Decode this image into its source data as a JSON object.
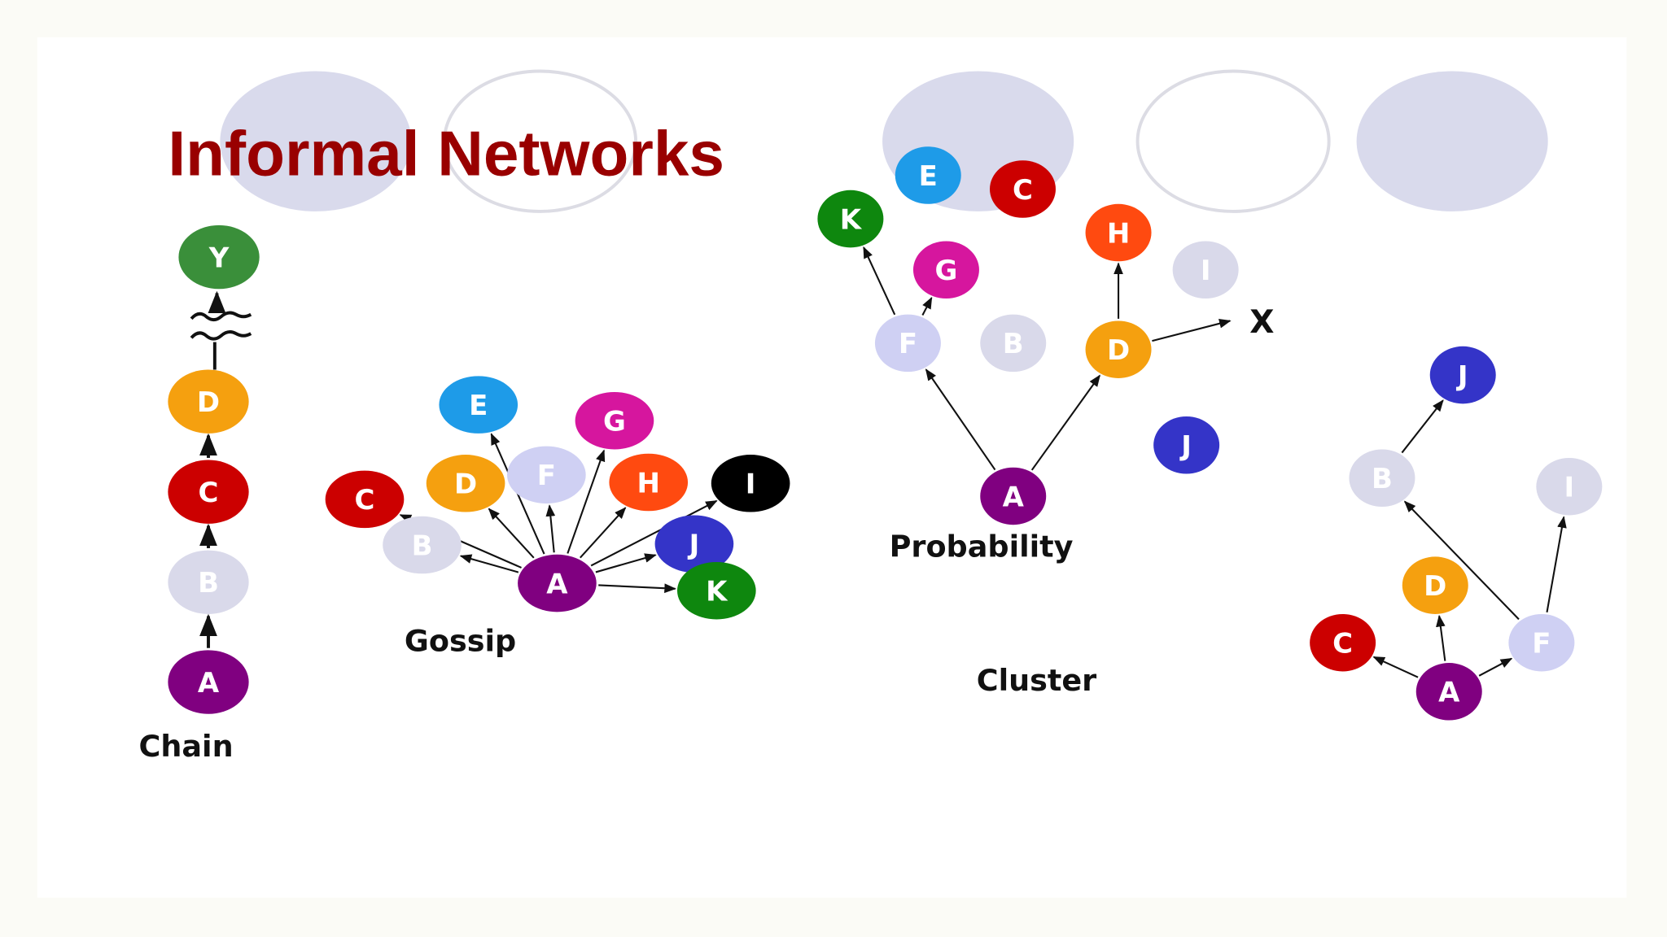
{
  "title": "Informal Networks",
  "colors": {
    "title": "#990000",
    "decor_fill": "#d9daec",
    "decor_stroke": "#dcdce4",
    "purple": "#800080",
    "light": "#d9d9ea",
    "lavender": "#cfd0f3",
    "orange": "#f5a00f",
    "red": "#cc0000",
    "green": "#3a8f3a",
    "dark_green": "#0e870e",
    "blue": "#1e9be8",
    "magenta": "#d6169e",
    "orange_red": "#ff4a10",
    "black": "#000000",
    "indigo": "#3434c8"
  },
  "networks": [
    {
      "id": "chain",
      "caption": "Chain",
      "nodes": [
        {
          "id": "chain-Y",
          "label": "Y",
          "color": "green"
        },
        {
          "id": "chain-D",
          "label": "D",
          "color": "orange"
        },
        {
          "id": "chain-C",
          "label": "C",
          "color": "red"
        },
        {
          "id": "chain-B",
          "label": "B",
          "color": "light"
        },
        {
          "id": "chain-A",
          "label": "A",
          "color": "purple"
        }
      ],
      "edges": [
        [
          "chain-A",
          "chain-B"
        ],
        [
          "chain-B",
          "chain-C"
        ],
        [
          "chain-C",
          "chain-D"
        ]
      ],
      "break_edge": [
        "chain-D",
        "chain-Y"
      ]
    },
    {
      "id": "gossip",
      "caption": "Gossip",
      "nodes": [
        {
          "id": "g-C",
          "label": "C",
          "color": "red"
        },
        {
          "id": "g-B",
          "label": "B",
          "color": "light"
        },
        {
          "id": "g-D",
          "label": "D",
          "color": "orange"
        },
        {
          "id": "g-E",
          "label": "E",
          "color": "blue"
        },
        {
          "id": "g-F",
          "label": "F",
          "color": "lavender"
        },
        {
          "id": "g-G",
          "label": "G",
          "color": "magenta"
        },
        {
          "id": "g-H",
          "label": "H",
          "color": "orange_red"
        },
        {
          "id": "g-I",
          "label": "I",
          "color": "black"
        },
        {
          "id": "g-J",
          "label": "J",
          "color": "indigo"
        },
        {
          "id": "g-K",
          "label": "K",
          "color": "dark_green"
        },
        {
          "id": "g-A",
          "label": "A",
          "color": "purple"
        }
      ],
      "edges": [
        [
          "g-A",
          "g-C"
        ],
        [
          "g-A",
          "g-B"
        ],
        [
          "g-A",
          "g-D"
        ],
        [
          "g-A",
          "g-E"
        ],
        [
          "g-A",
          "g-F"
        ],
        [
          "g-A",
          "g-G"
        ],
        [
          "g-A",
          "g-H"
        ],
        [
          "g-A",
          "g-I"
        ],
        [
          "g-A",
          "g-J"
        ],
        [
          "g-A",
          "g-K"
        ]
      ]
    },
    {
      "id": "probability",
      "caption": "Probability",
      "external_label": "X",
      "nodes": [
        {
          "id": "p-E",
          "label": "E",
          "color": "blue"
        },
        {
          "id": "p-C",
          "label": "C",
          "color": "red"
        },
        {
          "id": "p-K",
          "label": "K",
          "color": "dark_green"
        },
        {
          "id": "p-G",
          "label": "G",
          "color": "magenta"
        },
        {
          "id": "p-H",
          "label": "H",
          "color": "orange_red"
        },
        {
          "id": "p-I",
          "label": "I",
          "color": "light"
        },
        {
          "id": "p-F",
          "label": "F",
          "color": "lavender"
        },
        {
          "id": "p-B",
          "label": "B",
          "color": "light"
        },
        {
          "id": "p-D",
          "label": "D",
          "color": "orange"
        },
        {
          "id": "p-J",
          "label": "J",
          "color": "indigo"
        },
        {
          "id": "p-A",
          "label": "A",
          "color": "purple"
        }
      ],
      "edges": [
        [
          "p-A",
          "p-F"
        ],
        [
          "p-A",
          "p-D"
        ],
        [
          "p-F",
          "p-K"
        ],
        [
          "p-F",
          "p-G"
        ],
        [
          "p-D",
          "p-H"
        ],
        [
          "p-D",
          "p-X"
        ]
      ]
    },
    {
      "id": "cluster",
      "caption": "Cluster",
      "nodes": [
        {
          "id": "c-J",
          "label": "J",
          "color": "indigo"
        },
        {
          "id": "c-B",
          "label": "B",
          "color": "light"
        },
        {
          "id": "c-I",
          "label": "I",
          "color": "light"
        },
        {
          "id": "c-D",
          "label": "D",
          "color": "orange"
        },
        {
          "id": "c-C",
          "label": "C",
          "color": "red"
        },
        {
          "id": "c-F",
          "label": "F",
          "color": "lavender"
        },
        {
          "id": "c-A",
          "label": "A",
          "color": "purple"
        }
      ],
      "edges": [
        [
          "c-A",
          "c-C"
        ],
        [
          "c-A",
          "c-D"
        ],
        [
          "c-A",
          "c-F"
        ],
        [
          "c-F",
          "c-B"
        ],
        [
          "c-F",
          "c-I"
        ],
        [
          "c-B",
          "c-J"
        ]
      ]
    }
  ]
}
